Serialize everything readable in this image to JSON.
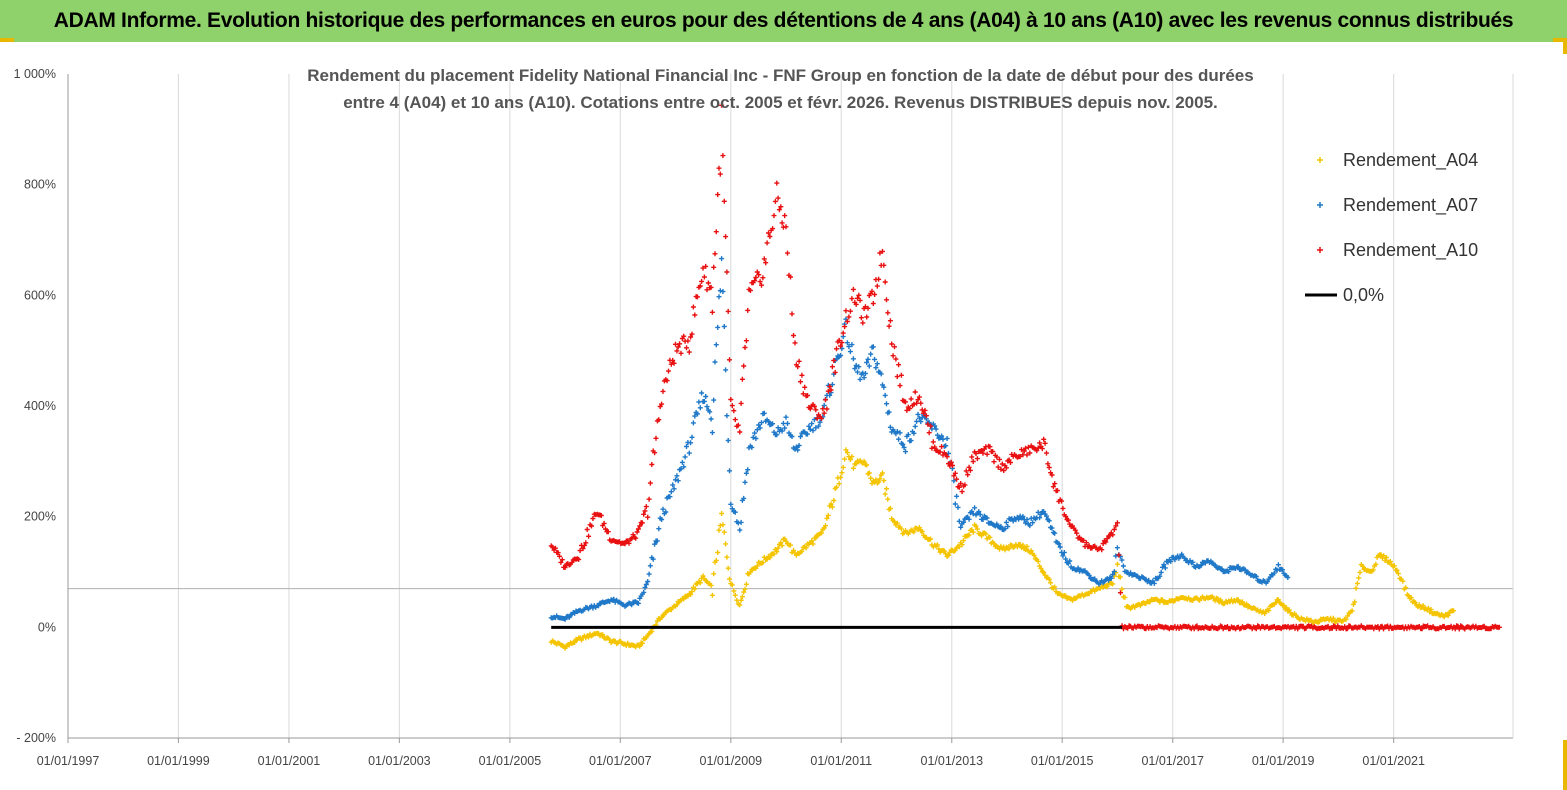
{
  "header": {
    "title": "ADAM Informe. Evolution historique des performances en euros pour des détentions de 4 ans (A04) à 10 ans (A10) avec les revenus connus distribués",
    "background": "#8fd16a"
  },
  "chart_data": {
    "type": "scatter",
    "title_lines": [
      "Rendement du placement Fidelity National Financial Inc - FNF Group en fonction de la date de début pour des durées",
      "entre 4 (A04) et 10 ans (A10).  Cotations entre oct. 2005 et févr. 2026. Revenus DISTRIBUES depuis nov. 2005."
    ],
    "xlabel": "",
    "ylabel": "",
    "x_ticks": [
      "01/01/1997",
      "01/01/1999",
      "01/01/2001",
      "01/01/2003",
      "01/01/2005",
      "01/01/2007",
      "01/01/2009",
      "01/01/2011",
      "01/01/2013",
      "01/01/2015",
      "01/01/2017",
      "01/01/2019",
      "01/01/2021"
    ],
    "xlim": [
      "1997-01-01",
      "2023-03-01"
    ],
    "y_ticks": [
      "- 200%",
      "0%",
      "200%",
      "400%",
      "600%",
      "800%",
      "1 000%"
    ],
    "ylim": [
      -200,
      1000
    ],
    "grid": "vertical",
    "legend_position": "top-right",
    "reference_line": 70,
    "series": [
      {
        "name": "Rendement_A04",
        "color": "#f5c400",
        "marker": "+",
        "points": [
          [
            "2005-10-01",
            -25
          ],
          [
            "2006-01-01",
            -35
          ],
          [
            "2006-04-01",
            -22
          ],
          [
            "2006-08-01",
            -10
          ],
          [
            "2006-11-01",
            -25
          ],
          [
            "2007-02-01",
            -30
          ],
          [
            "2007-05-01",
            -35
          ],
          [
            "2007-07-01",
            -15
          ],
          [
            "2007-10-01",
            20
          ],
          [
            "2008-01-01",
            40
          ],
          [
            "2008-04-01",
            60
          ],
          [
            "2008-07-01",
            90
          ],
          [
            "2008-09-01",
            70
          ],
          [
            "2008-11-01",
            200
          ],
          [
            "2009-01-01",
            80
          ],
          [
            "2009-03-01",
            40
          ],
          [
            "2009-05-01",
            100
          ],
          [
            "2009-08-01",
            120
          ],
          [
            "2009-11-01",
            140
          ],
          [
            "2010-01-01",
            160
          ],
          [
            "2010-03-01",
            130
          ],
          [
            "2010-06-01",
            150
          ],
          [
            "2010-09-01",
            170
          ],
          [
            "2010-12-01",
            250
          ],
          [
            "2011-02-01",
            320
          ],
          [
            "2011-04-01",
            290
          ],
          [
            "2011-06-01",
            300
          ],
          [
            "2011-08-01",
            260
          ],
          [
            "2011-10-01",
            270
          ],
          [
            "2011-12-01",
            200
          ],
          [
            "2012-03-01",
            170
          ],
          [
            "2012-06-01",
            180
          ],
          [
            "2012-09-01",
            150
          ],
          [
            "2012-12-01",
            130
          ],
          [
            "2013-03-01",
            150
          ],
          [
            "2013-06-01",
            180
          ],
          [
            "2013-09-01",
            160
          ],
          [
            "2013-12-01",
            140
          ],
          [
            "2014-03-01",
            150
          ],
          [
            "2014-06-01",
            140
          ],
          [
            "2014-09-01",
            100
          ],
          [
            "2014-12-01",
            60
          ],
          [
            "2015-03-01",
            50
          ],
          [
            "2015-06-01",
            60
          ],
          [
            "2015-09-01",
            70
          ],
          [
            "2015-12-01",
            80
          ],
          [
            "2016-01-01",
            110
          ],
          [
            "2016-03-01",
            35
          ],
          [
            "2016-06-01",
            40
          ],
          [
            "2016-09-01",
            50
          ],
          [
            "2016-12-01",
            45
          ],
          [
            "2017-03-01",
            55
          ],
          [
            "2017-06-01",
            50
          ],
          [
            "2017-09-01",
            55
          ],
          [
            "2017-12-01",
            45
          ],
          [
            "2018-03-01",
            50
          ],
          [
            "2018-06-01",
            35
          ],
          [
            "2018-09-01",
            25
          ],
          [
            "2018-12-01",
            50
          ],
          [
            "2019-02-01",
            30
          ],
          [
            "2019-05-01",
            15
          ],
          [
            "2019-08-01",
            10
          ],
          [
            "2019-11-01",
            15
          ],
          [
            "2020-02-01",
            10
          ],
          [
            "2020-04-01",
            30
          ],
          [
            "2020-06-01",
            110
          ],
          [
            "2020-08-01",
            100
          ],
          [
            "2020-10-01",
            130
          ],
          [
            "2020-12-01",
            120
          ],
          [
            "2021-02-01",
            100
          ],
          [
            "2021-04-01",
            60
          ],
          [
            "2021-06-01",
            40
          ],
          [
            "2021-08-01",
            35
          ],
          [
            "2021-10-01",
            25
          ],
          [
            "2021-12-01",
            20
          ],
          [
            "2022-02-01",
            30
          ]
        ]
      },
      {
        "name": "Rendement_A07",
        "color": "#1f78c8",
        "marker": "+",
        "points": [
          [
            "2005-10-01",
            20
          ],
          [
            "2006-01-01",
            15
          ],
          [
            "2006-04-01",
            30
          ],
          [
            "2006-08-01",
            40
          ],
          [
            "2006-11-01",
            50
          ],
          [
            "2007-02-01",
            40
          ],
          [
            "2007-05-01",
            45
          ],
          [
            "2007-07-01",
            80
          ],
          [
            "2007-10-01",
            200
          ],
          [
            "2008-01-01",
            260
          ],
          [
            "2008-04-01",
            330
          ],
          [
            "2008-07-01",
            420
          ],
          [
            "2008-09-01",
            380
          ],
          [
            "2008-11-01",
            660
          ],
          [
            "2009-01-01",
            230
          ],
          [
            "2009-03-01",
            180
          ],
          [
            "2009-05-01",
            320
          ],
          [
            "2009-08-01",
            380
          ],
          [
            "2009-11-01",
            350
          ],
          [
            "2010-01-01",
            370
          ],
          [
            "2010-03-01",
            320
          ],
          [
            "2010-06-01",
            360
          ],
          [
            "2010-09-01",
            380
          ],
          [
            "2010-12-01",
            480
          ],
          [
            "2011-02-01",
            540
          ],
          [
            "2011-04-01",
            470
          ],
          [
            "2011-06-01",
            450
          ],
          [
            "2011-08-01",
            500
          ],
          [
            "2011-10-01",
            440
          ],
          [
            "2011-12-01",
            360
          ],
          [
            "2012-03-01",
            330
          ],
          [
            "2012-06-01",
            380
          ],
          [
            "2012-09-01",
            360
          ],
          [
            "2012-12-01",
            330
          ],
          [
            "2013-03-01",
            180
          ],
          [
            "2013-06-01",
            210
          ],
          [
            "2013-09-01",
            190
          ],
          [
            "2013-12-01",
            180
          ],
          [
            "2014-03-01",
            200
          ],
          [
            "2014-06-01",
            190
          ],
          [
            "2014-09-01",
            210
          ],
          [
            "2014-12-01",
            150
          ],
          [
            "2015-03-01",
            110
          ],
          [
            "2015-06-01",
            100
          ],
          [
            "2015-09-01",
            80
          ],
          [
            "2015-12-01",
            90
          ],
          [
            "2016-01-01",
            140
          ],
          [
            "2016-03-01",
            100
          ],
          [
            "2016-06-01",
            90
          ],
          [
            "2016-09-01",
            80
          ],
          [
            "2016-12-01",
            120
          ],
          [
            "2017-03-01",
            130
          ],
          [
            "2017-06-01",
            110
          ],
          [
            "2017-09-01",
            120
          ],
          [
            "2017-12-01",
            100
          ],
          [
            "2018-03-01",
            110
          ],
          [
            "2018-06-01",
            95
          ],
          [
            "2018-09-01",
            80
          ],
          [
            "2018-12-01",
            110
          ],
          [
            "2019-02-01",
            90
          ]
        ]
      },
      {
        "name": "Rendement_A10",
        "color": "#e81010",
        "marker": "+",
        "points": [
          [
            "2005-10-01",
            150
          ],
          [
            "2006-01-01",
            110
          ],
          [
            "2006-04-01",
            130
          ],
          [
            "2006-08-01",
            210
          ],
          [
            "2006-11-01",
            160
          ],
          [
            "2007-02-01",
            150
          ],
          [
            "2007-05-01",
            170
          ],
          [
            "2007-07-01",
            220
          ],
          [
            "2007-10-01",
            420
          ],
          [
            "2008-01-01",
            500
          ],
          [
            "2008-04-01",
            520
          ],
          [
            "2008-07-01",
            650
          ],
          [
            "2008-09-01",
            600
          ],
          [
            "2008-11-01",
            900
          ],
          [
            "2009-01-01",
            400
          ],
          [
            "2009-03-01",
            350
          ],
          [
            "2009-05-01",
            600
          ],
          [
            "2009-08-01",
            640
          ],
          [
            "2009-11-01",
            780
          ],
          [
            "2010-01-01",
            720
          ],
          [
            "2010-03-01",
            500
          ],
          [
            "2010-06-01",
            400
          ],
          [
            "2010-09-01",
            380
          ],
          [
            "2010-12-01",
            490
          ],
          [
            "2011-02-01",
            560
          ],
          [
            "2011-04-01",
            600
          ],
          [
            "2011-06-01",
            560
          ],
          [
            "2011-08-01",
            600
          ],
          [
            "2011-10-01",
            680
          ],
          [
            "2011-12-01",
            520
          ],
          [
            "2012-03-01",
            400
          ],
          [
            "2012-06-01",
            420
          ],
          [
            "2012-09-01",
            330
          ],
          [
            "2012-12-01",
            310
          ],
          [
            "2013-03-01",
            250
          ],
          [
            "2013-06-01",
            310
          ],
          [
            "2013-09-01",
            320
          ],
          [
            "2013-12-01",
            290
          ],
          [
            "2014-03-01",
            310
          ],
          [
            "2014-06-01",
            320
          ],
          [
            "2014-09-01",
            330
          ],
          [
            "2014-12-01",
            240
          ],
          [
            "2015-03-01",
            180
          ],
          [
            "2015-06-01",
            150
          ],
          [
            "2015-09-01",
            140
          ],
          [
            "2015-12-01",
            170
          ],
          [
            "2016-01-01",
            190
          ],
          [
            "2016-02-01",
            0
          ],
          [
            "2016-06-01",
            0
          ],
          [
            "2016-12-01",
            0
          ],
          [
            "2017-06-01",
            0
          ],
          [
            "2017-12-01",
            0
          ],
          [
            "2018-06-01",
            0
          ],
          [
            "2018-12-01",
            0
          ],
          [
            "2019-06-01",
            0
          ],
          [
            "2019-12-01",
            0
          ],
          [
            "2020-06-01",
            0
          ],
          [
            "2020-12-01",
            0
          ],
          [
            "2021-06-01",
            0
          ],
          [
            "2021-12-01",
            0
          ],
          [
            "2022-06-01",
            0
          ],
          [
            "2022-12-01",
            0
          ]
        ]
      },
      {
        "name": "0,0%",
        "color": "#000000",
        "marker": "line",
        "points": [
          [
            "2005-10-01",
            0
          ],
          [
            "2016-02-01",
            0
          ]
        ]
      }
    ]
  }
}
